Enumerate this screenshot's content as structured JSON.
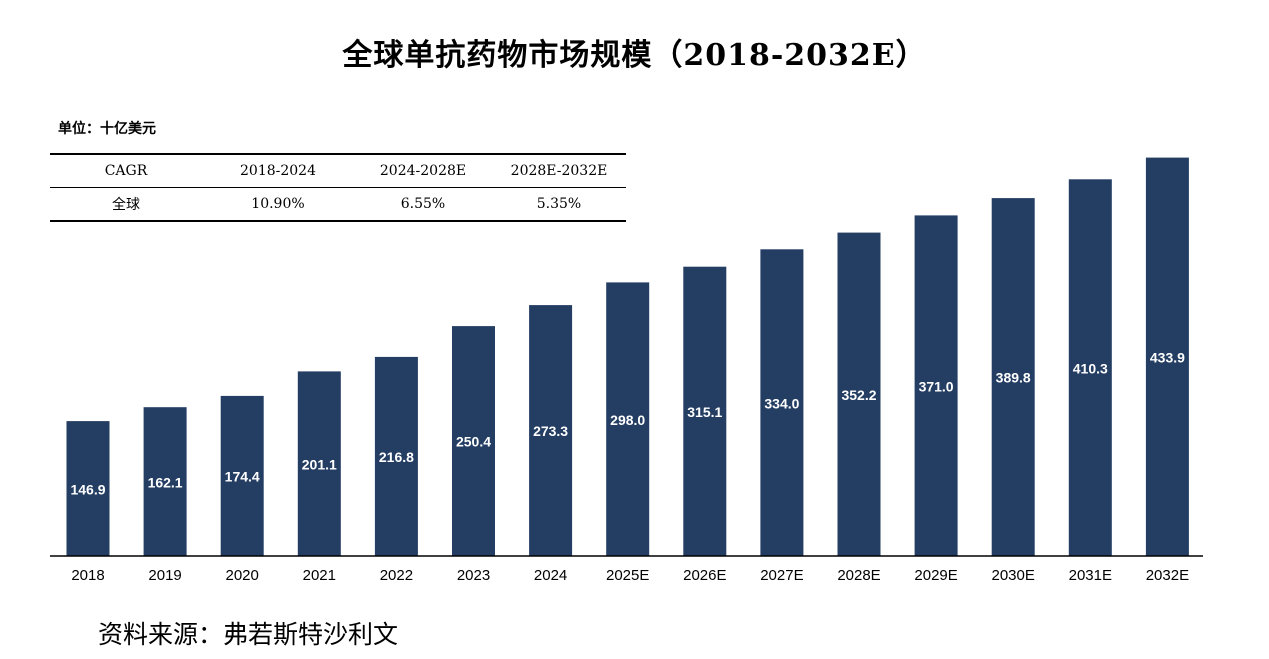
{
  "chart_data": {
    "type": "bar",
    "title": "全球单抗药物市场规模（2018-2032E）",
    "unit": "单位：十亿美元",
    "categories": [
      "2018",
      "2019",
      "2020",
      "2021",
      "2022",
      "2023",
      "2024",
      "2025E",
      "2026E",
      "2027E",
      "2028E",
      "2029E",
      "2030E",
      "2031E",
      "2032E"
    ],
    "values": [
      146.9,
      162.1,
      174.4,
      201.1,
      216.8,
      250.4,
      273.3,
      298.0,
      315.1,
      334.0,
      352.2,
      371.0,
      389.8,
      410.3,
      433.9
    ],
    "value_labels": [
      "146.9",
      "162.1",
      "174.4",
      "201.1",
      "216.8",
      "250.4",
      "273.3",
      "298.0",
      "315.1",
      "334.0",
      "352.2",
      "371.0",
      "389.8",
      "410.3",
      "433.9"
    ],
    "bar_color": "#233d63",
    "label_color": "#ffffff",
    "ylim": [
      0,
      440
    ],
    "grid": false,
    "xlabel": "",
    "ylabel": ""
  },
  "cagr_table": {
    "header": [
      "CAGR",
      "2018-2024",
      "2024-2028E",
      "2028E-2032E"
    ],
    "rows": [
      [
        "全球",
        "10.90%",
        "6.55%",
        "5.35%"
      ]
    ]
  },
  "source": "资料来源：弗若斯特沙利文"
}
